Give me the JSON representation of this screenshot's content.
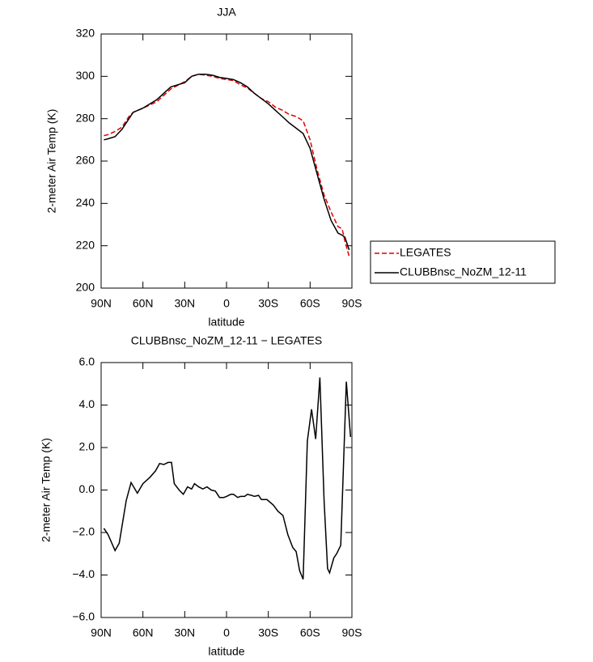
{
  "chart_data": [
    {
      "type": "line",
      "title": "JJA",
      "xlabel": "latitude",
      "ylabel": "2-meter Air Temp (K)",
      "x": [
        88,
        85,
        80,
        75,
        70,
        67,
        60,
        50,
        40,
        30,
        25,
        20,
        15,
        10,
        5,
        0,
        -5,
        -10,
        -15,
        -20,
        -25,
        -30,
        -35,
        -40,
        -45,
        -50,
        -55,
        -60,
        -65,
        -70,
        -75,
        -80,
        -83,
        -85,
        -88
      ],
      "series": [
        {
          "name": "LEGATES",
          "color": "#e00000",
          "dashed": true,
          "values": [
            272,
            272.5,
            274,
            276,
            281,
            283,
            285,
            288,
            294,
            297.5,
            300,
            301,
            300.5,
            300,
            299,
            298.5,
            298,
            296,
            294.5,
            292,
            289.5,
            288,
            285.5,
            284,
            282,
            281,
            279,
            270,
            256,
            244,
            236,
            229,
            228,
            222,
            215
          ]
        },
        {
          "name": "CLUBBnsc_NoZM_12-11",
          "color": "#000000",
          "dashed": false,
          "values": [
            270,
            270.5,
            271.5,
            275,
            280,
            283,
            285,
            289,
            295,
            297,
            300,
            301,
            301,
            300.5,
            299.5,
            299,
            298.5,
            297,
            295,
            292,
            289.5,
            287,
            284,
            281,
            278,
            275.5,
            273,
            266,
            254,
            242,
            232,
            226,
            225,
            224,
            218
          ]
        }
      ],
      "xlim": [
        90,
        -90
      ],
      "xticks": [
        {
          "value": 90,
          "label": "90N"
        },
        {
          "value": 60,
          "label": "60N"
        },
        {
          "value": 30,
          "label": "30N"
        },
        0,
        {
          "value": -30,
          "label": "30S"
        },
        {
          "value": -60,
          "label": "60S"
        },
        {
          "value": -90,
          "label": "90S"
        }
      ],
      "ylim": [
        200,
        320
      ],
      "yticks": [
        200,
        220,
        240,
        260,
        280,
        300,
        320
      ],
      "legend": "right"
    },
    {
      "type": "line",
      "title": "CLUBBnsc_NoZM_12-11 − LEGATES",
      "xlabel": "latitude",
      "ylabel": "2-meter Air Temp (K)",
      "x": [
        88,
        85,
        80,
        77,
        72,
        68.5,
        64,
        60,
        55,
        51,
        48,
        45,
        42,
        39.5,
        37.5,
        34,
        31,
        28,
        25,
        23,
        20,
        17,
        14,
        11,
        8,
        5,
        2,
        0,
        -3,
        -5,
        -8,
        -10,
        -13,
        -15,
        -18,
        -20,
        -23,
        -25,
        -29,
        -33.5,
        -37,
        -40.5,
        -44,
        -47.5,
        -50,
        -52.5,
        -55,
        -58,
        -61,
        -64,
        -67,
        -70,
        -72.5,
        -74,
        -77,
        -79,
        -82,
        -86,
        -89
      ],
      "series": [
        {
          "color": "#000000",
          "dashed": false,
          "values": [
            -1.8,
            -2.1,
            -2.85,
            -2.5,
            -0.5,
            0.35,
            -0.15,
            0.3,
            0.6,
            0.9,
            1.25,
            1.2,
            1.3,
            1.3,
            0.3,
            0.0,
            -0.2,
            0.15,
            0.05,
            0.3,
            0.15,
            0.05,
            0.15,
            0.0,
            -0.05,
            -0.35,
            -0.35,
            -0.3,
            -0.2,
            -0.2,
            -0.35,
            -0.3,
            -0.3,
            -0.2,
            -0.25,
            -0.3,
            -0.25,
            -0.45,
            -0.45,
            -0.7,
            -1.0,
            -1.2,
            -2.1,
            -2.7,
            -2.9,
            -3.8,
            -4.2,
            2.3,
            3.8,
            2.4,
            5.3,
            -0.5,
            -3.7,
            -3.9,
            -3.2,
            -3.0,
            -2.6,
            5.1,
            2.5
          ]
        }
      ],
      "xlim": [
        90,
        -90
      ],
      "xticks": [
        {
          "value": 90,
          "label": "90N"
        },
        {
          "value": 60,
          "label": "60N"
        },
        {
          "value": 30,
          "label": "30N"
        },
        0,
        {
          "value": -30,
          "label": "30S"
        },
        {
          "value": -60,
          "label": "60S"
        },
        {
          "value": -90,
          "label": "90S"
        }
      ],
      "ylim": [
        -6,
        6
      ],
      "yticks": [
        {
          "value": -6,
          "label": "−6.0"
        },
        {
          "value": -4,
          "label": "−4.0"
        },
        {
          "value": -2,
          "label": "−2.0"
        },
        {
          "value": 0,
          "label": "0.0"
        },
        {
          "value": 2,
          "label": "2.0"
        },
        {
          "value": 4,
          "label": "4.0"
        },
        {
          "value": 6,
          "label": "6.0"
        }
      ]
    }
  ]
}
